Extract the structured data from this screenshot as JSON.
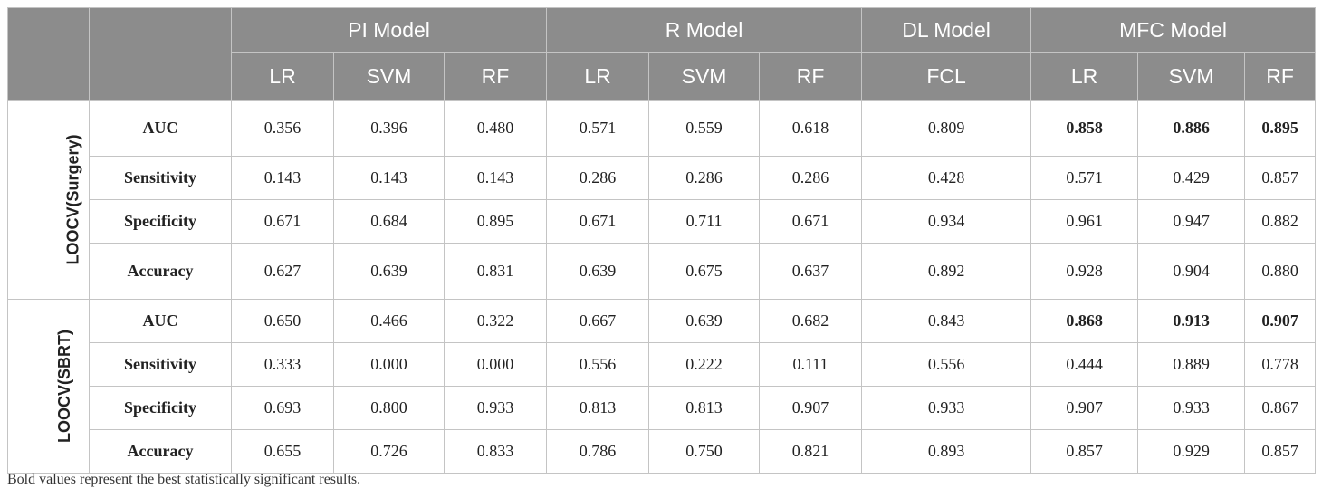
{
  "header": {
    "groups": [
      "PI Model",
      "R Model",
      "DL Model",
      "MFC Model"
    ],
    "subheaders": [
      "LR",
      "SVM",
      "RF",
      "LR",
      "SVM",
      "RF",
      "FCL",
      "LR",
      "SVM",
      "RF"
    ]
  },
  "sections": [
    {
      "label": "LOOCV(Surgery)",
      "rows": [
        {
          "metric": "AUC",
          "values": [
            "0.356",
            "0.396",
            "0.480",
            "0.571",
            "0.559",
            "0.618",
            "0.809",
            "0.858",
            "0.886",
            "0.895"
          ],
          "bold": [
            7,
            8,
            9
          ]
        },
        {
          "metric": "Sensitivity",
          "values": [
            "0.143",
            "0.143",
            "0.143",
            "0.286",
            "0.286",
            "0.286",
            "0.428",
            "0.571",
            "0.429",
            "0.857"
          ],
          "bold": []
        },
        {
          "metric": "Specificity",
          "values": [
            "0.671",
            "0.684",
            "0.895",
            "0.671",
            "0.711",
            "0.671",
            "0.934",
            "0.961",
            "0.947",
            "0.882"
          ],
          "bold": []
        },
        {
          "metric": "Accuracy",
          "values": [
            "0.627",
            "0.639",
            "0.831",
            "0.639",
            "0.675",
            "0.637",
            "0.892",
            "0.928",
            "0.904",
            "0.880"
          ],
          "bold": []
        }
      ]
    },
    {
      "label": "LOOCV(SBRT)",
      "rows": [
        {
          "metric": "AUC",
          "values": [
            "0.650",
            "0.466",
            "0.322",
            "0.667",
            "0.639",
            "0.682",
            "0.843",
            "0.868",
            "0.913",
            "0.907"
          ],
          "bold": [
            7,
            8,
            9
          ]
        },
        {
          "metric": "Sensitivity",
          "values": [
            "0.333",
            "0.000",
            "0.000",
            "0.556",
            "0.222",
            "0.111",
            "0.556",
            "0.444",
            "0.889",
            "0.778"
          ],
          "bold": []
        },
        {
          "metric": "Specificity",
          "values": [
            "0.693",
            "0.800",
            "0.933",
            "0.813",
            "0.813",
            "0.907",
            "0.933",
            "0.907",
            "0.933",
            "0.867"
          ],
          "bold": []
        },
        {
          "metric": "Accuracy",
          "values": [
            "0.655",
            "0.726",
            "0.833",
            "0.786",
            "0.750",
            "0.821",
            "0.893",
            "0.857",
            "0.929",
            "0.857"
          ],
          "bold": []
        }
      ]
    }
  ],
  "footnote": "Bold values represent the best statistically significant results.",
  "colors": {
    "header_bg": "#8c8c8c",
    "header_text": "#ffffff",
    "border": "#c4c4c4"
  }
}
